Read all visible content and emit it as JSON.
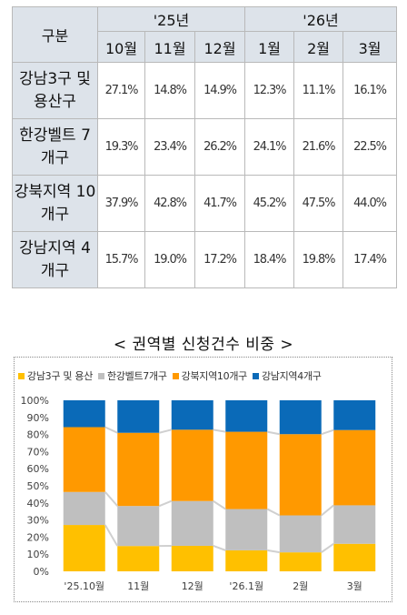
{
  "table": {
    "header_group": "구분",
    "years": [
      "'25년",
      "'26년"
    ],
    "months": [
      "10월",
      "11월",
      "12월",
      "1월",
      "2월",
      "3월"
    ],
    "rows": [
      {
        "label": "강남3구 및 용산구",
        "values": [
          "27.1%",
          "14.8%",
          "14.9%",
          "12.3%",
          "11.1%",
          "16.1%"
        ]
      },
      {
        "label": "한강벨트 7개구",
        "values": [
          "19.3%",
          "23.4%",
          "26.2%",
          "24.1%",
          "21.6%",
          "22.5%"
        ]
      },
      {
        "label": "강북지역 10개구",
        "values": [
          "37.9%",
          "42.8%",
          "41.7%",
          "45.2%",
          "47.5%",
          "44.0%"
        ]
      },
      {
        "label": "강남지역 4개구",
        "values": [
          "15.7%",
          "19.0%",
          "17.2%",
          "18.4%",
          "19.8%",
          "17.4%"
        ]
      }
    ]
  },
  "chart_data": {
    "type": "bar",
    "stacked": true,
    "title": "< 권역별 신청건수 비중 >",
    "categories": [
      "'25.10월",
      "11월",
      "12월",
      "'26.1월",
      "2월",
      "3월"
    ],
    "series": [
      {
        "name": "강남3구 및 용산",
        "color": "#ffc000",
        "values": [
          27.1,
          14.8,
          14.9,
          12.3,
          11.1,
          16.1
        ]
      },
      {
        "name": "한강벨트7개구",
        "color": "#bfbfbf",
        "values": [
          19.3,
          23.4,
          26.2,
          24.1,
          21.6,
          22.5
        ]
      },
      {
        "name": "강북지역10개구",
        "color": "#ff9900",
        "values": [
          37.9,
          42.8,
          41.7,
          45.2,
          47.5,
          44.0
        ]
      },
      {
        "name": "강남지역4개구",
        "color": "#0a6ab8",
        "values": [
          15.7,
          19.0,
          17.2,
          18.4,
          19.8,
          17.4
        ]
      }
    ],
    "yticks": [
      "0%",
      "10%",
      "20%",
      "30%",
      "40%",
      "50%",
      "60%",
      "70%",
      "80%",
      "90%",
      "100%"
    ],
    "ylim": [
      0,
      100
    ],
    "legend_position": "top",
    "series_lines": true,
    "gridlines": false
  }
}
